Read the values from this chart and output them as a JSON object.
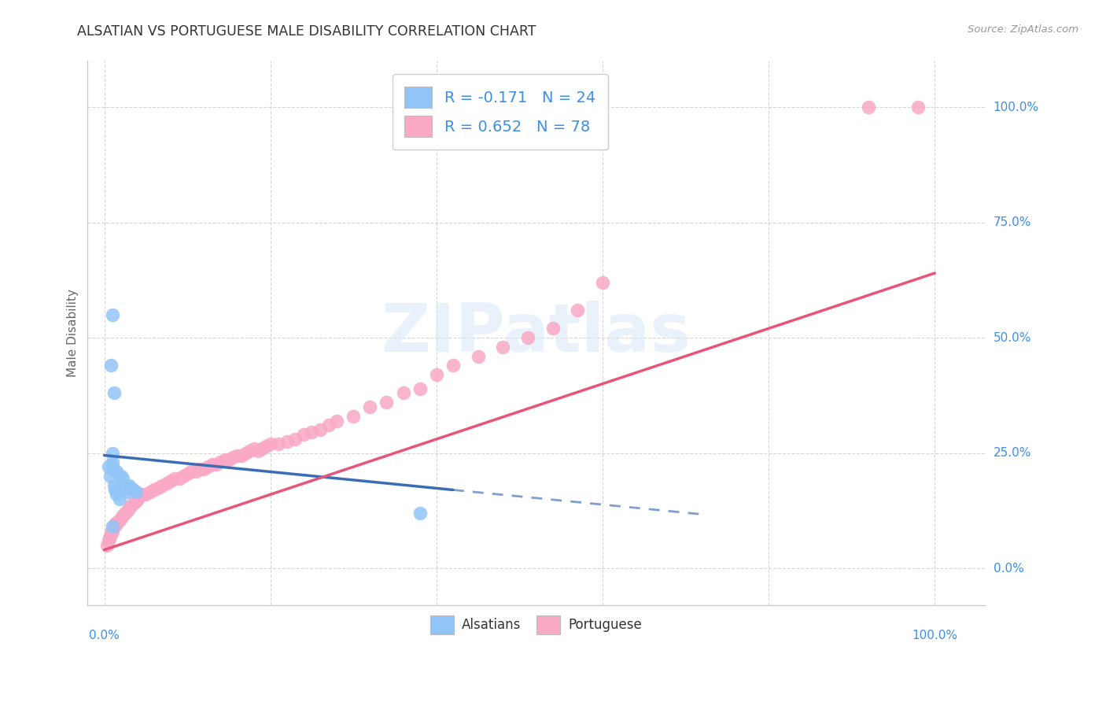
{
  "title": "ALSATIAN VS PORTUGUESE MALE DISABILITY CORRELATION CHART",
  "source": "Source: ZipAtlas.com",
  "ylabel": "Male Disability",
  "legend_label1": "R = -0.171   N = 24",
  "legend_label2": "R = 0.652   N = 78",
  "legend_label_alsatians": "Alsatians",
  "legend_label_portuguese": "Portuguese",
  "alsatian_color": "#92C5F7",
  "portuguese_color": "#F9A8C5",
  "alsatian_line_color": "#3B6DB5",
  "portuguese_line_color": "#E8547A",
  "watermark": "ZIPatlas",
  "alsatian_x": [
    0.005,
    0.007,
    0.008,
    0.01,
    0.01,
    0.01,
    0.01,
    0.012,
    0.013,
    0.015,
    0.015,
    0.018,
    0.02,
    0.022,
    0.025,
    0.028,
    0.03,
    0.032,
    0.035,
    0.038,
    0.01,
    0.012,
    0.38,
    0.01
  ],
  "alsatian_y": [
    0.22,
    0.2,
    0.44,
    0.25,
    0.23,
    0.22,
    0.215,
    0.18,
    0.17,
    0.16,
    0.21,
    0.15,
    0.2,
    0.195,
    0.175,
    0.165,
    0.18,
    0.175,
    0.17,
    0.165,
    0.55,
    0.38,
    0.12,
    0.09
  ],
  "portuguese_x": [
    0.003,
    0.005,
    0.006,
    0.007,
    0.008,
    0.009,
    0.01,
    0.01,
    0.012,
    0.013,
    0.015,
    0.015,
    0.018,
    0.02,
    0.022,
    0.025,
    0.028,
    0.03,
    0.032,
    0.035,
    0.038,
    0.04,
    0.042,
    0.045,
    0.05,
    0.055,
    0.06,
    0.065,
    0.07,
    0.075,
    0.08,
    0.085,
    0.09,
    0.095,
    0.1,
    0.105,
    0.11,
    0.115,
    0.12,
    0.125,
    0.13,
    0.135,
    0.14,
    0.145,
    0.15,
    0.155,
    0.16,
    0.165,
    0.17,
    0.175,
    0.18,
    0.185,
    0.19,
    0.195,
    0.2,
    0.21,
    0.22,
    0.23,
    0.24,
    0.25,
    0.26,
    0.27,
    0.28,
    0.3,
    0.32,
    0.34,
    0.36,
    0.38,
    0.4,
    0.42,
    0.45,
    0.48,
    0.51,
    0.54,
    0.57,
    0.6,
    0.92,
    0.98
  ],
  "portuguese_y": [
    0.05,
    0.06,
    0.065,
    0.07,
    0.075,
    0.08,
    0.08,
    0.085,
    0.09,
    0.095,
    0.095,
    0.1,
    0.105,
    0.11,
    0.115,
    0.12,
    0.125,
    0.13,
    0.135,
    0.14,
    0.145,
    0.15,
    0.155,
    0.16,
    0.16,
    0.165,
    0.17,
    0.175,
    0.18,
    0.185,
    0.19,
    0.195,
    0.195,
    0.2,
    0.205,
    0.21,
    0.21,
    0.215,
    0.215,
    0.22,
    0.225,
    0.225,
    0.23,
    0.235,
    0.235,
    0.24,
    0.245,
    0.245,
    0.25,
    0.255,
    0.26,
    0.255,
    0.26,
    0.265,
    0.27,
    0.27,
    0.275,
    0.28,
    0.29,
    0.295,
    0.3,
    0.31,
    0.32,
    0.33,
    0.35,
    0.36,
    0.38,
    0.39,
    0.42,
    0.44,
    0.46,
    0.48,
    0.5,
    0.52,
    0.56,
    0.62,
    1.0,
    1.0
  ],
  "alsatian_line_x0": 0.0,
  "alsatian_line_y0": 0.245,
  "alsatian_line_x1": 0.42,
  "alsatian_line_y1": 0.17,
  "alsatian_line_dash_x0": 0.42,
  "alsatian_line_dash_y0": 0.17,
  "alsatian_line_dash_x1": 0.72,
  "alsatian_line_dash_y1": 0.117,
  "portuguese_line_x0": 0.0,
  "portuguese_line_y0": 0.04,
  "portuguese_line_x1": 1.0,
  "portuguese_line_y1": 0.64,
  "background_color": "#FFFFFF",
  "grid_color": "#CCCCCC",
  "title_color": "#333333",
  "blue_text_color": "#3B8FE8",
  "axis_label_color": "#666666",
  "ytick_labels": [
    "0.0%",
    "25.0%",
    "50.0%",
    "75.0%",
    "100.0%"
  ],
  "ytick_values": [
    0.0,
    0.25,
    0.5,
    0.75,
    1.0
  ],
  "xlim": [
    -0.02,
    1.06
  ],
  "ylim": [
    -0.08,
    1.1
  ]
}
